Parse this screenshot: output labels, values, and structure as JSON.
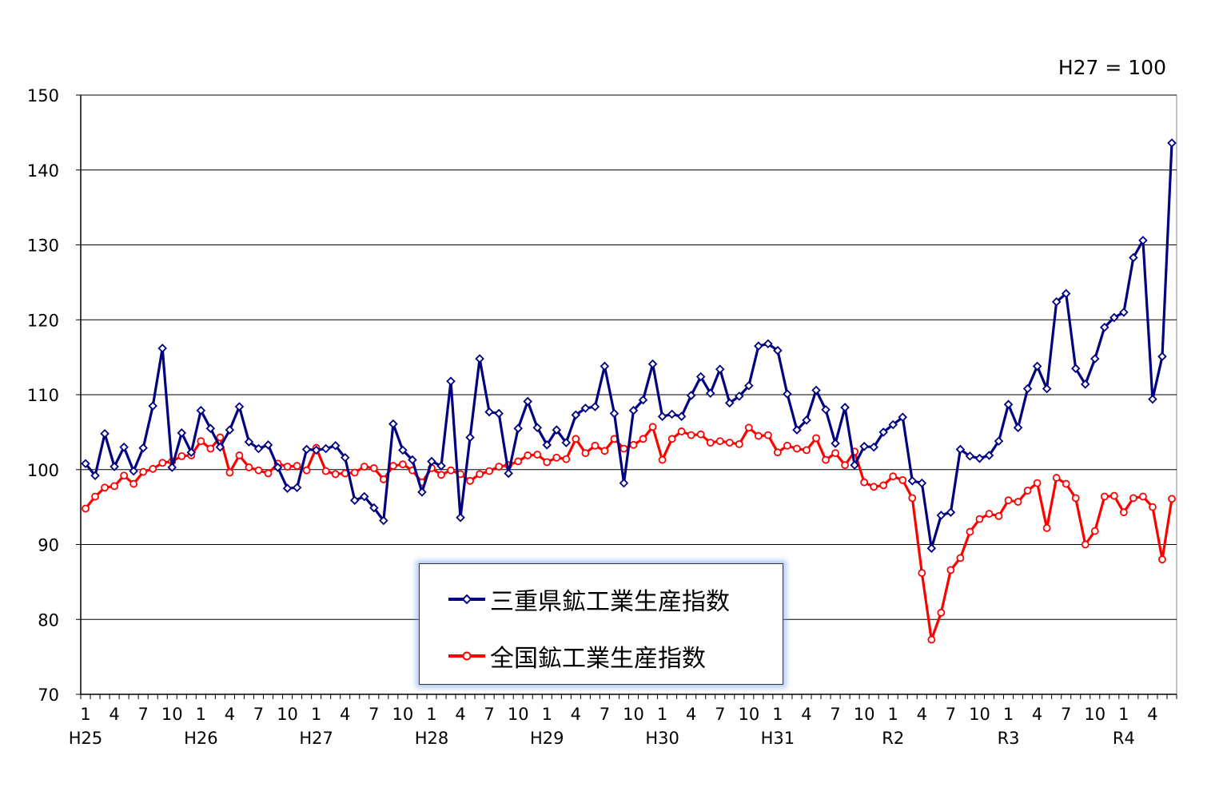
{
  "note": "H27 = 100",
  "colors": {
    "mie": "#000080",
    "national": "#ff0000",
    "grid": "#000000"
  },
  "legend": {
    "mie_label": "三重県鉱工業生産指数",
    "national_label": "全国鉱工業生産指数"
  },
  "chart_data": {
    "type": "line",
    "ylim": [
      70,
      150
    ],
    "yticks": [
      70,
      80,
      90,
      100,
      110,
      120,
      130,
      140,
      150
    ],
    "month_tick_labels": [
      "1",
      "4",
      "7",
      "10"
    ],
    "year_labels": [
      "H25",
      "H26",
      "H27",
      "H28",
      "H29",
      "H30",
      "H31",
      "R2",
      "R3",
      "R4"
    ],
    "legend_position": "bottom-center",
    "grid": true,
    "series": [
      {
        "name": "三重県鉱工業生産指数",
        "values": [
          100.8,
          99.2,
          104.8,
          100.4,
          103.0,
          99.8,
          102.9,
          108.5,
          116.2,
          100.3,
          104.9,
          102.3,
          107.9,
          105.5,
          103.0,
          105.3,
          108.4,
          103.7,
          102.8,
          103.3,
          100.3,
          97.5,
          97.6,
          102.7,
          102.6,
          102.8,
          103.2,
          101.6,
          95.9,
          96.4,
          94.9,
          93.2,
          106.1,
          102.6,
          101.3,
          97.0,
          101.1,
          100.5,
          111.8,
          93.6,
          104.3,
          114.8,
          107.7,
          107.5,
          99.5,
          105.5,
          109.1,
          105.6,
          103.3,
          105.3,
          103.6,
          107.3,
          108.2,
          108.4,
          113.8,
          107.5,
          98.2,
          107.9,
          109.3,
          114.1,
          107.1,
          107.4,
          107.1,
          109.9,
          112.4,
          110.2,
          113.4,
          108.9,
          109.8,
          111.2,
          116.5,
          116.8,
          115.9,
          110.1,
          105.3,
          106.6,
          110.6,
          108.0,
          103.5,
          108.3,
          100.6,
          103.1,
          103.0,
          105.0,
          106.0,
          107.0,
          98.5,
          98.2,
          89.5,
          93.9,
          94.3,
          102.7,
          101.8,
          101.5,
          101.9,
          103.8,
          108.7,
          105.6,
          110.8,
          113.8,
          110.8,
          122.4,
          123.5,
          113.5,
          111.4,
          114.8,
          119.0,
          120.3,
          121.0,
          128.3,
          130.6,
          109.4,
          115.1,
          143.6
        ]
      },
      {
        "name": "全国鉱工業生産指数",
        "values": [
          94.8,
          96.4,
          97.6,
          97.8,
          99.2,
          98.1,
          99.7,
          100.1,
          100.9,
          101.1,
          101.8,
          101.9,
          103.8,
          102.8,
          104.3,
          99.6,
          101.9,
          100.3,
          99.9,
          99.5,
          100.8,
          100.4,
          100.5,
          99.9,
          102.9,
          99.8,
          99.4,
          99.5,
          99.6,
          100.4,
          100.2,
          98.7,
          100.5,
          100.7,
          99.9,
          98.3,
          100.2,
          99.3,
          99.9,
          99.4,
          98.5,
          99.4,
          99.8,
          100.4,
          100.6,
          101.1,
          101.9,
          102.0,
          101.0,
          101.6,
          101.4,
          104.1,
          102.2,
          103.2,
          102.5,
          104.1,
          102.8,
          103.3,
          104.1,
          105.7,
          101.3,
          104.1,
          105.1,
          104.6,
          104.7,
          103.6,
          103.8,
          103.6,
          103.4,
          105.6,
          104.5,
          104.6,
          102.3,
          103.2,
          102.8,
          102.6,
          104.2,
          101.3,
          102.2,
          100.6,
          102.4,
          98.3,
          97.7,
          97.9,
          99.1,
          98.6,
          96.2,
          86.2,
          77.3,
          80.9,
          86.6,
          88.2,
          91.7,
          93.4,
          94.1,
          93.8,
          95.9,
          95.7,
          97.2,
          98.2,
          92.2,
          98.9,
          98.1,
          96.2,
          90.0,
          91.8,
          96.4,
          96.5,
          94.3,
          96.2,
          96.4,
          95.0,
          88.0,
          96.1
        ]
      }
    ]
  }
}
